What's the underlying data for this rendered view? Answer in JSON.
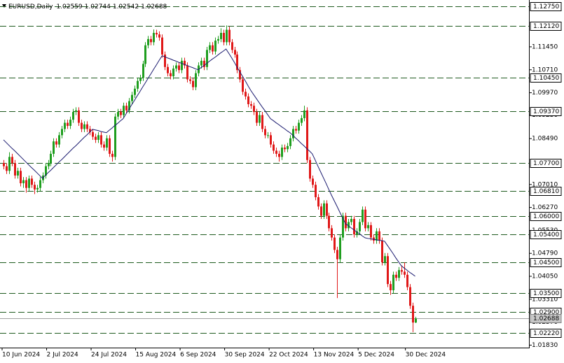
{
  "chart_data": {
    "type": "candlestick",
    "title": "EURUSD,Daily",
    "header_values": [
      1.02559,
      1.02744,
      1.02542,
      1.02688
    ],
    "categories": [
      "10 Jun 2024",
      null,
      null,
      null,
      null,
      null,
      null,
      null,
      null,
      null,
      null,
      null,
      null,
      null,
      null,
      null,
      "2 Jul 2024",
      null,
      null,
      null,
      null,
      null,
      null,
      null,
      null,
      null,
      null,
      null,
      null,
      null,
      null,
      null,
      "24 Jul 2024",
      null,
      null,
      null,
      null,
      null,
      null,
      null,
      null,
      null,
      null,
      null,
      null,
      null,
      null,
      null,
      "15 Aug 2024",
      null,
      null,
      null,
      null,
      null,
      null,
      null,
      null,
      null,
      null,
      null,
      null,
      null,
      null,
      null,
      "6 Sep 2024",
      null,
      null,
      null,
      null,
      null,
      null,
      null,
      null,
      null,
      null,
      null,
      null,
      null,
      null,
      null,
      "30 Sep 2024",
      null,
      null,
      null,
      null,
      null,
      null,
      null,
      null,
      null,
      null,
      null,
      null,
      null,
      null,
      null,
      "22 Oct 2024",
      null,
      null,
      null,
      null,
      null,
      null,
      null,
      null,
      null,
      null,
      null,
      null,
      null,
      null,
      null,
      "13 Nov 2024",
      null,
      null,
      null,
      null,
      null,
      null,
      null,
      null,
      null,
      null,
      null,
      null,
      null,
      null,
      null,
      "5 Dec 2024",
      null,
      null,
      null,
      null,
      null,
      null,
      null,
      null,
      null,
      null,
      null,
      null,
      null,
      null,
      null,
      null,
      "30 Dec 2024",
      null,
      null,
      null
    ],
    "ohlc": [
      [
        1.077,
        1.078,
        1.075,
        1.076
      ],
      [
        1.076,
        1.077,
        1.0735,
        1.0745
      ],
      [
        1.0745,
        1.0805,
        1.0735,
        1.079
      ],
      [
        1.079,
        1.08,
        1.076,
        1.077
      ],
      [
        1.077,
        1.078,
        1.072,
        1.073
      ],
      [
        1.073,
        1.0755,
        1.072,
        1.0745
      ],
      [
        1.0745,
        1.0755,
        1.0695,
        1.0705
      ],
      [
        1.0705,
        1.0725,
        1.069,
        1.0715
      ],
      [
        1.0715,
        1.0725,
        1.0675,
        1.069
      ],
      [
        1.069,
        1.073,
        1.068,
        1.072
      ],
      [
        1.072,
        1.073,
        1.069,
        1.07
      ],
      [
        1.07,
        1.071,
        1.067,
        1.0685
      ],
      [
        1.0685,
        1.07,
        1.0675,
        1.069
      ],
      [
        1.069,
        1.0725,
        1.068,
        1.0715
      ],
      [
        1.0715,
        1.074,
        1.0705,
        1.073
      ],
      [
        1.073,
        1.077,
        1.072,
        1.076
      ],
      [
        1.076,
        1.078,
        1.075,
        1.077
      ],
      [
        1.077,
        1.081,
        1.076,
        1.08
      ],
      [
        1.08,
        1.085,
        1.079,
        1.084
      ],
      [
        1.084,
        1.085,
        1.082,
        1.083
      ],
      [
        1.083,
        1.087,
        1.082,
        1.086
      ],
      [
        1.086,
        1.089,
        1.085,
        1.088
      ],
      [
        1.088,
        1.091,
        1.087,
        1.09
      ],
      [
        1.09,
        1.091,
        1.088,
        1.089
      ],
      [
        1.089,
        1.092,
        1.088,
        1.091
      ],
      [
        1.091,
        1.0945,
        1.09,
        1.0935
      ],
      [
        1.0935,
        1.095,
        1.0925,
        1.094
      ],
      [
        1.094,
        1.095,
        1.089,
        1.09
      ],
      [
        1.09,
        1.091,
        1.087,
        1.088
      ],
      [
        1.088,
        1.0905,
        1.087,
        1.0895
      ],
      [
        1.0895,
        1.0905,
        1.087,
        1.088
      ],
      [
        1.088,
        1.089,
        1.086,
        1.087
      ],
      [
        1.087,
        1.088,
        1.0845,
        1.0855
      ],
      [
        1.0855,
        1.0865,
        1.0835,
        1.0845
      ],
      [
        1.0845,
        1.087,
        1.0835,
        1.086
      ],
      [
        1.086,
        1.087,
        1.082,
        1.083
      ],
      [
        1.083,
        1.084,
        1.081,
        1.082
      ],
      [
        1.082,
        1.086,
        1.081,
        1.085
      ],
      [
        1.085,
        1.086,
        1.079,
        1.08
      ],
      [
        1.08,
        1.081,
        1.0775,
        1.079
      ],
      [
        1.079,
        1.093,
        1.078,
        1.092
      ],
      [
        1.092,
        1.0945,
        1.091,
        1.0935
      ],
      [
        1.0935,
        1.0945,
        1.0915,
        1.0925
      ],
      [
        1.0925,
        1.0965,
        1.0915,
        1.0955
      ],
      [
        1.0955,
        1.0965,
        1.093,
        1.094
      ],
      [
        1.094,
        1.098,
        1.093,
        1.097
      ],
      [
        1.097,
        1.1,
        1.096,
        1.099
      ],
      [
        1.099,
        1.102,
        1.098,
        1.101
      ],
      [
        1.101,
        1.1045,
        1.1,
        1.1035
      ],
      [
        1.1035,
        1.1055,
        1.1025,
        1.1045
      ],
      [
        1.1045,
        1.11,
        1.1035,
        1.109
      ],
      [
        1.109,
        1.116,
        1.108,
        1.115
      ],
      [
        1.115,
        1.118,
        1.114,
        1.117
      ],
      [
        1.117,
        1.118,
        1.115,
        1.116
      ],
      [
        1.116,
        1.1201,
        1.115,
        1.119
      ],
      [
        1.119,
        1.12,
        1.1175,
        1.1185
      ],
      [
        1.1185,
        1.1195,
        1.1165,
        1.1175
      ],
      [
        1.1175,
        1.1185,
        1.111,
        1.112
      ],
      [
        1.112,
        1.113,
        1.107,
        1.108
      ],
      [
        1.108,
        1.109,
        1.105,
        1.106
      ],
      [
        1.106,
        1.107,
        1.104,
        1.105
      ],
      [
        1.105,
        1.1085,
        1.104,
        1.1075
      ],
      [
        1.1075,
        1.1095,
        1.1065,
        1.1085
      ],
      [
        1.1085,
        1.1095,
        1.106,
        1.107
      ],
      [
        1.107,
        1.111,
        1.106,
        1.11
      ],
      [
        1.11,
        1.111,
        1.1075,
        1.1085
      ],
      [
        1.1085,
        1.1095,
        1.103,
        1.104
      ],
      [
        1.104,
        1.105,
        1.1025,
        1.1035
      ],
      [
        1.1035,
        1.1045,
        1.1005,
        1.1015
      ],
      [
        1.1015,
        1.107,
        1.1005,
        1.106
      ],
      [
        1.106,
        1.1095,
        1.105,
        1.1085
      ],
      [
        1.1085,
        1.111,
        1.1075,
        1.11
      ],
      [
        1.11,
        1.111,
        1.107,
        1.108
      ],
      [
        1.108,
        1.1145,
        1.107,
        1.1135
      ],
      [
        1.1135,
        1.116,
        1.1125,
        1.115
      ],
      [
        1.115,
        1.116,
        1.112,
        1.113
      ],
      [
        1.113,
        1.1175,
        1.112,
        1.1165
      ],
      [
        1.1165,
        1.118,
        1.1155,
        1.117
      ],
      [
        1.117,
        1.1205,
        1.116,
        1.119
      ],
      [
        1.119,
        1.12,
        1.115,
        1.116
      ],
      [
        1.116,
        1.1214,
        1.115,
        1.12
      ],
      [
        1.12,
        1.121,
        1.115,
        1.116
      ],
      [
        1.116,
        1.117,
        1.1125,
        1.1135
      ],
      [
        1.1135,
        1.1145,
        1.111,
        1.112
      ],
      [
        1.112,
        1.113,
        1.106,
        1.107
      ],
      [
        1.107,
        1.108,
        1.103,
        1.104
      ],
      [
        1.104,
        1.105,
        1.099,
        1.1
      ],
      [
        1.1,
        1.101,
        1.0975,
        1.0985
      ],
      [
        1.0985,
        1.0995,
        1.095,
        1.096
      ],
      [
        1.096,
        1.097,
        1.0945,
        1.0955
      ],
      [
        1.0955,
        1.0965,
        1.0925,
        1.0935
      ],
      [
        1.0935,
        1.0945,
        1.089,
        1.09
      ],
      [
        1.09,
        1.0935,
        1.089,
        1.0925
      ],
      [
        1.0925,
        1.0935,
        1.087,
        1.088
      ],
      [
        1.088,
        1.089,
        1.085,
        1.086
      ],
      [
        1.086,
        1.087,
        1.085,
        1.086
      ],
      [
        1.086,
        1.087,
        1.082,
        1.083
      ],
      [
        1.083,
        1.084,
        1.08,
        1.081
      ],
      [
        1.081,
        1.082,
        1.079,
        1.08
      ],
      [
        1.08,
        1.081,
        1.0775,
        1.079
      ],
      [
        1.079,
        1.083,
        1.078,
        1.082
      ],
      [
        1.082,
        1.083,
        1.0805,
        1.0815
      ],
      [
        1.0815,
        1.0835,
        1.0805,
        1.0825
      ],
      [
        1.0825,
        1.086,
        1.0815,
        1.085
      ],
      [
        1.085,
        1.089,
        1.084,
        1.088
      ],
      [
        1.088,
        1.089,
        1.0865,
        1.0875
      ],
      [
        1.0875,
        1.091,
        1.0865,
        1.09
      ],
      [
        1.09,
        1.0925,
        1.089,
        1.0915
      ],
      [
        1.0915,
        1.0955,
        1.0905,
        1.094
      ],
      [
        1.094,
        1.095,
        1.077,
        1.078
      ],
      [
        1.078,
        1.079,
        1.071,
        1.072
      ],
      [
        1.072,
        1.073,
        1.069,
        1.07
      ],
      [
        1.07,
        1.071,
        1.065,
        1.066
      ],
      [
        1.066,
        1.067,
        1.062,
        1.063
      ],
      [
        1.063,
        1.064,
        1.059,
        1.06
      ],
      [
        1.06,
        1.065,
        1.059,
        1.064
      ],
      [
        1.064,
        1.065,
        1.059,
        1.06
      ],
      [
        1.06,
        1.061,
        1.055,
        1.056
      ],
      [
        1.056,
        1.057,
        1.052,
        1.053
      ],
      [
        1.053,
        1.054,
        1.048,
        1.049
      ],
      [
        1.049,
        1.05,
        1.0335,
        1.046
      ],
      [
        1.046,
        1.054,
        1.045,
        1.053
      ],
      [
        1.053,
        1.061,
        1.052,
        1.06
      ],
      [
        1.06,
        1.061,
        1.055,
        1.056
      ],
      [
        1.056,
        1.059,
        1.055,
        1.058
      ],
      [
        1.058,
        1.06,
        1.057,
        1.059
      ],
      [
        1.059,
        1.06,
        1.053,
        1.054
      ],
      [
        1.054,
        1.056,
        1.053,
        1.055
      ],
      [
        1.055,
        1.059,
        1.054,
        1.058
      ],
      [
        1.058,
        1.063,
        1.057,
        1.062
      ],
      [
        1.062,
        1.063,
        1.055,
        1.056
      ],
      [
        1.056,
        1.058,
        1.055,
        1.057
      ],
      [
        1.057,
        1.058,
        1.052,
        1.053
      ],
      [
        1.053,
        1.054,
        1.051,
        1.052
      ],
      [
        1.052,
        1.056,
        1.051,
        1.055
      ],
      [
        1.055,
        1.056,
        1.051,
        1.052
      ],
      [
        1.052,
        1.053,
        1.044,
        1.045
      ],
      [
        1.045,
        1.048,
        1.044,
        1.047
      ],
      [
        1.047,
        1.048,
        1.037,
        1.038
      ],
      [
        1.038,
        1.039,
        1.0345,
        1.036
      ],
      [
        1.036,
        1.042,
        1.035,
        1.041
      ],
      [
        1.041,
        1.042,
        1.039,
        1.04
      ],
      [
        1.04,
        1.0435,
        1.039,
        1.0425
      ],
      [
        1.0425,
        1.044,
        1.041,
        1.042
      ],
      [
        1.042,
        1.045,
        1.04,
        1.041
      ],
      [
        1.041,
        1.042,
        1.036,
        1.037
      ],
      [
        1.037,
        1.038,
        1.03,
        1.031
      ],
      [
        1.031,
        1.032,
        1.0225,
        1.0256
      ],
      [
        1.02559,
        1.02744,
        1.02542,
        1.02688
      ]
    ],
    "up_color": "#1f9e1f",
    "down_color": "#e01818",
    "ma": {
      "color": "#1c1c70",
      "values": [
        1.0845,
        1.0836,
        1.0827,
        1.0818,
        1.081,
        1.0801,
        1.0792,
        1.0783,
        1.0774,
        1.0765,
        1.0756,
        1.0748,
        1.0739,
        1.073,
        1.0721,
        1.073,
        1.0739,
        1.0747,
        1.0756,
        1.0765,
        1.0774,
        1.0782,
        1.0791,
        1.08,
        1.0809,
        1.0818,
        1.0826,
        1.0835,
        1.0844,
        1.0853,
        1.0861,
        1.087,
        1.0879,
        1.0877,
        1.0875,
        1.0872,
        1.087,
        1.0868,
        1.0876,
        1.0883,
        1.0891,
        1.0898,
        1.0906,
        1.0913,
        1.0928,
        1.0942,
        1.0957,
        1.0971,
        1.0986,
        1.1,
        1.1015,
        1.1029,
        1.1044,
        1.1058,
        1.1073,
        1.1087,
        1.1102,
        1.1116,
        1.1113,
        1.1109,
        1.1106,
        1.1102,
        1.1099,
        1.1095,
        1.1092,
        1.1088,
        1.1085,
        1.1081,
        1.1078,
        1.1074,
        1.1071,
        1.1078,
        1.1084,
        1.1091,
        1.1098,
        1.1105,
        1.1111,
        1.1118,
        1.1125,
        1.1131,
        1.1138,
        1.1124,
        1.111,
        1.1095,
        1.1079,
        1.1064,
        1.1049,
        1.1034,
        1.1018,
        1.1003,
        1.099,
        1.0977,
        1.0964,
        1.0951,
        1.0939,
        1.0926,
        1.0913,
        1.0907,
        1.09,
        1.0894,
        1.0887,
        1.0881,
        1.0874,
        1.0868,
        1.086,
        1.0851,
        1.0843,
        1.0834,
        1.0826,
        1.0817,
        1.0809,
        1.08,
        1.0781,
        1.0761,
        1.0742,
        1.0723,
        1.0704,
        1.0684,
        1.0665,
        1.0647,
        1.0629,
        1.061,
        1.0592,
        1.0574,
        1.0568,
        1.0561,
        1.0555,
        1.0548,
        1.0542,
        1.0535,
        1.0529,
        1.0527,
        1.0526,
        1.0524,
        1.0523,
        1.0521,
        1.052,
        1.0518,
        1.0505,
        1.0492,
        1.0479,
        1.0465,
        1.0452,
        1.0439,
        1.0432,
        1.0425,
        1.0418,
        1.0412,
        1.0405
      ]
    },
    "ylim": [
      1.0175,
      1.1296
    ],
    "yticks": [
      {
        "value": 1.1145,
        "label": "1.11450"
      },
      {
        "value": 1.1071,
        "label": "1.10710"
      },
      {
        "value": 1.0997,
        "label": "1.09970"
      },
      {
        "value": 1.0925,
        "label": "1.09250"
      },
      {
        "value": 1.0849,
        "label": "1.08490"
      },
      {
        "value": 1.0701,
        "label": "1.07010"
      },
      {
        "value": 1.0627,
        "label": "1.06270"
      },
      {
        "value": 1.0553,
        "label": "1.05530"
      },
      {
        "value": 1.0479,
        "label": "1.04790"
      },
      {
        "value": 1.0405,
        "label": "1.04050"
      },
      {
        "value": 1.0331,
        "label": "1.03310"
      },
      {
        "value": 1.0257,
        "label": "1.02570"
      },
      {
        "value": 1.0183,
        "label": "1.01830"
      }
    ],
    "levels": {
      "color": "#1e5a1e",
      "values": [
        {
          "value": 1.1275,
          "label": "1.12750"
        },
        {
          "value": 1.1212,
          "label": "1.12120"
        },
        {
          "value": 1.1045,
          "label": "1.10450"
        },
        {
          "value": 1.0937,
          "label": "1.09370"
        },
        {
          "value": 1.077,
          "label": "1.07700"
        },
        {
          "value": 1.0681,
          "label": "1.06810"
        },
        {
          "value": 1.06,
          "label": "1.06000"
        },
        {
          "value": 1.054,
          "label": "1.05400"
        },
        {
          "value": 1.045,
          "label": "1.04500"
        },
        {
          "value": 1.035,
          "label": "1.03500"
        },
        {
          "value": 1.029,
          "label": "1.02900"
        },
        {
          "value": 1.0222,
          "label": "1.02220"
        }
      ]
    },
    "current_price": 1.02688
  }
}
